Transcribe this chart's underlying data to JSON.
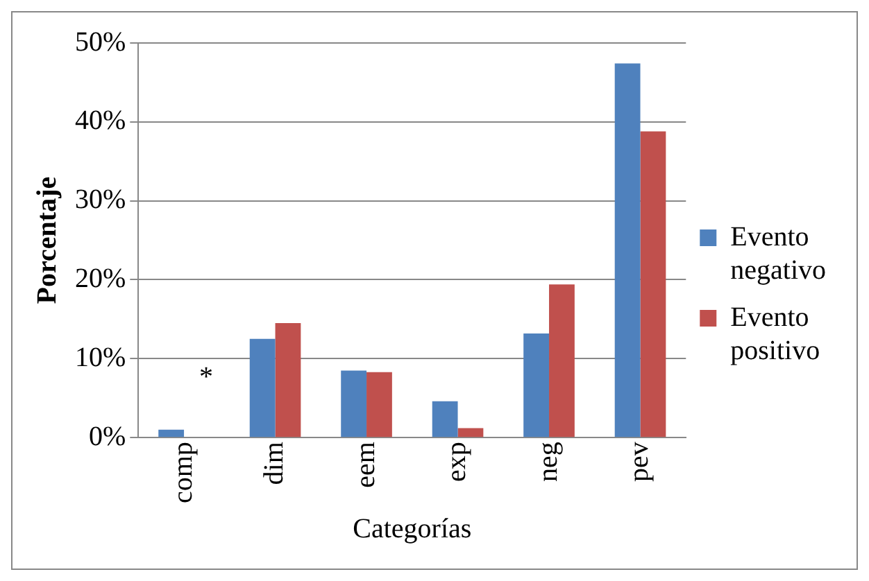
{
  "chart_data": {
    "type": "bar",
    "xlabel": "Categorías",
    "ylabel": "Porcentaje",
    "categories": [
      "comp",
      "dim",
      "eem",
      "exp",
      "neg",
      "pev"
    ],
    "series": [
      {
        "name": "Evento negativo",
        "color": "#4f81bd",
        "values": [
          1.0,
          12.5,
          8.5,
          4.6,
          13.2,
          47.4
        ]
      },
      {
        "name": "Evento positivo",
        "color": "#c0504d",
        "values": [
          0,
          14.5,
          8.3,
          1.2,
          19.4,
          38.8
        ]
      }
    ],
    "ylim": [
      0,
      50
    ],
    "yticks": [
      {
        "value": 0,
        "label": "0%"
      },
      {
        "value": 10,
        "label": "10%"
      },
      {
        "value": 20,
        "label": "20%"
      },
      {
        "value": 30,
        "label": "30%"
      },
      {
        "value": 40,
        "label": "40%"
      },
      {
        "value": 50,
        "label": "50%"
      }
    ],
    "grid": "y",
    "legend": "right",
    "annotations": [
      "*"
    ]
  }
}
